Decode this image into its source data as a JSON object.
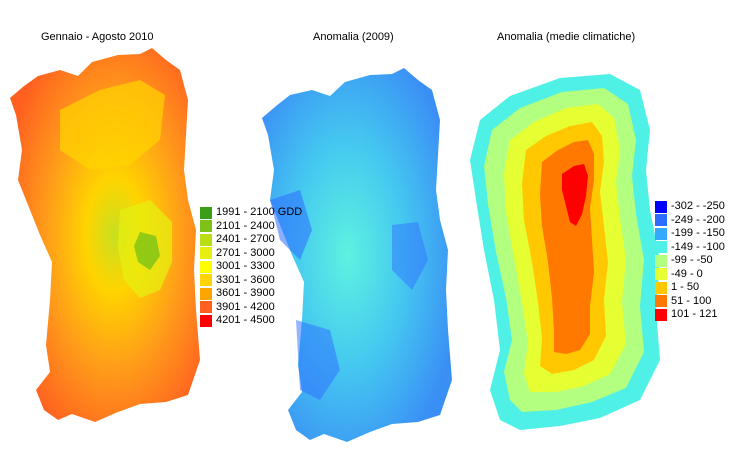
{
  "panels": [
    {
      "title": "Gennaio - Agosto 2010",
      "legend": [
        {
          "label": "1991 - 2100 GDD",
          "color": "#3a9e1a"
        },
        {
          "label": "2101 - 2400",
          "color": "#7cc217"
        },
        {
          "label": "2401 - 2700",
          "color": "#b9de14"
        },
        {
          "label": "2701 - 3000",
          "color": "#e6ef10"
        },
        {
          "label": "3001 - 3300",
          "color": "#ffff00"
        },
        {
          "label": "3301 - 3600",
          "color": "#ffd400"
        },
        {
          "label": "3601 - 3900",
          "color": "#ffa500"
        },
        {
          "label": "3901 - 4200",
          "color": "#ff6020"
        },
        {
          "label": "4201 - 4500",
          "color": "#ff0000"
        }
      ]
    },
    {
      "title": "Anomalia (2009)",
      "legend": []
    },
    {
      "title": "Anomalia (medie climatiche)",
      "legend": [
        {
          "label": "-302 - -250",
          "color": "#0000ff"
        },
        {
          "label": "-249 - -200",
          "color": "#2e6bff"
        },
        {
          "label": "-199 - -150",
          "color": "#37a8ff"
        },
        {
          "label": "-149 - -100",
          "color": "#4ff0e6"
        },
        {
          "label": "-99 - -50",
          "color": "#b3ff80"
        },
        {
          "label": "-49 - 0",
          "color": "#e6ff33"
        },
        {
          "label": "1 - 50",
          "color": "#ffc800"
        },
        {
          "label": "51 - 100",
          "color": "#ff7800"
        },
        {
          "label": "101 - 121",
          "color": "#ff0000"
        }
      ]
    }
  ]
}
